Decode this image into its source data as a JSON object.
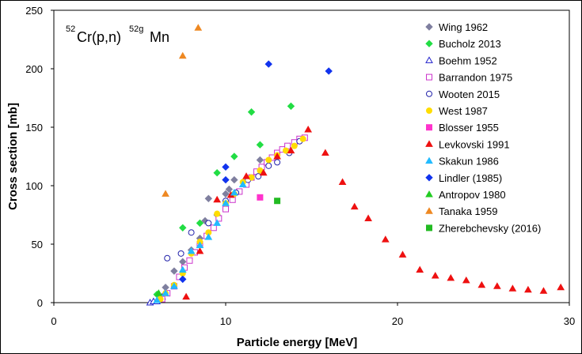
{
  "chart_data": {
    "type": "scatter",
    "title": {
      "mass_target": "52",
      "reaction": "Cr(p,n)",
      "mass_product": "52g",
      "product": "Mn"
    },
    "xlabel": "Particle  energy [MeV]",
    "ylabel": "Cross section [mb]",
    "xlim": [
      0,
      30
    ],
    "ylim": [
      0,
      250
    ],
    "xticks": [
      0,
      10,
      20,
      30
    ],
    "yticks": [
      0,
      50,
      100,
      150,
      200,
      250
    ],
    "legend_position": "right",
    "series": [
      {
        "name": "Wing 1962",
        "marker": "diamond",
        "color": "#7f7f9f",
        "filled": true,
        "points": [
          [
            6.5,
            13
          ],
          [
            7.0,
            27
          ],
          [
            7.5,
            35
          ],
          [
            8.0,
            45
          ],
          [
            8.5,
            55
          ],
          [
            8.8,
            70
          ],
          [
            9.0,
            89
          ],
          [
            9.5,
            75
          ],
          [
            10.0,
            93
          ],
          [
            10.2,
            97
          ],
          [
            10.5,
            105
          ],
          [
            12.0,
            122
          ]
        ]
      },
      {
        "name": "Bucholz 2013",
        "marker": "diamond",
        "color": "#22dd44",
        "filled": true,
        "points": [
          [
            6.0,
            7
          ],
          [
            7.5,
            64
          ],
          [
            8.5,
            68
          ],
          [
            9.5,
            111
          ],
          [
            10.5,
            125
          ],
          [
            11.5,
            163
          ],
          [
            12.0,
            135
          ],
          [
            13.8,
            168
          ]
        ]
      },
      {
        "name": "Boehm 1952",
        "marker": "triangle",
        "color": "#2222cc",
        "filled": false,
        "points": [
          [
            5.6,
            0
          ],
          [
            5.8,
            1
          ],
          [
            6.0,
            1
          ],
          [
            6.3,
            5
          ]
        ]
      },
      {
        "name": "Barrandon 1975",
        "marker": "square",
        "color": "#cc33cc",
        "filled": false,
        "points": [
          [
            6.3,
            3
          ],
          [
            6.6,
            8
          ],
          [
            7.0,
            14
          ],
          [
            7.3,
            22
          ],
          [
            7.6,
            30
          ],
          [
            7.9,
            36
          ],
          [
            8.2,
            43
          ],
          [
            8.5,
            50
          ],
          [
            8.9,
            57
          ],
          [
            9.3,
            64
          ],
          [
            9.6,
            72
          ],
          [
            10.0,
            80
          ],
          [
            10.4,
            88
          ],
          [
            10.8,
            95
          ],
          [
            11.2,
            101
          ],
          [
            11.5,
            107
          ],
          [
            11.8,
            112
          ],
          [
            12.1,
            116
          ],
          [
            12.4,
            120
          ],
          [
            12.7,
            124
          ],
          [
            13.0,
            128
          ],
          [
            13.3,
            131
          ],
          [
            13.6,
            134
          ],
          [
            14.0,
            137
          ],
          [
            14.3,
            140
          ],
          [
            14.6,
            141
          ]
        ]
      },
      {
        "name": "Wooten 2015",
        "marker": "circle",
        "color": "#2222aa",
        "filled": false,
        "points": [
          [
            6.6,
            38
          ],
          [
            7.4,
            42
          ],
          [
            8.0,
            60
          ],
          [
            9.0,
            68
          ],
          [
            10.0,
            87
          ],
          [
            10.6,
            94
          ],
          [
            11.3,
            105
          ],
          [
            11.9,
            108
          ],
          [
            12.5,
            117
          ],
          [
            13.0,
            120
          ],
          [
            13.7,
            128
          ],
          [
            14.3,
            138
          ]
        ]
      },
      {
        "name": "West 1987",
        "marker": "circle",
        "color": "#ffdd00",
        "filled": true,
        "points": [
          [
            6.2,
            3
          ],
          [
            6.5,
            8
          ],
          [
            7.0,
            15
          ],
          [
            7.5,
            25
          ],
          [
            8.0,
            42
          ],
          [
            8.5,
            52
          ],
          [
            9.0,
            60
          ],
          [
            9.5,
            76
          ],
          [
            10.0,
            85
          ],
          [
            10.5,
            93
          ],
          [
            11.0,
            103
          ],
          [
            11.5,
            107
          ],
          [
            12.0,
            113
          ],
          [
            12.5,
            122
          ],
          [
            13.0,
            126
          ],
          [
            13.5,
            130
          ],
          [
            14.0,
            134
          ],
          [
            14.5,
            140
          ]
        ]
      },
      {
        "name": "Blosser 1955",
        "marker": "square",
        "color": "#ff33cc",
        "filled": true,
        "points": [
          [
            12.0,
            90
          ]
        ]
      },
      {
        "name": "Levkovski 1991",
        "marker": "triangle",
        "color": "#ee1111",
        "filled": true,
        "points": [
          [
            7.7,
            5
          ],
          [
            8.5,
            44
          ],
          [
            9.5,
            88
          ],
          [
            10.3,
            92
          ],
          [
            11.2,
            108
          ],
          [
            12.2,
            111
          ],
          [
            13.0,
            125
          ],
          [
            13.8,
            130
          ],
          [
            14.8,
            148
          ],
          [
            15.8,
            128
          ],
          [
            16.8,
            103
          ],
          [
            17.5,
            82
          ],
          [
            18.3,
            72
          ],
          [
            19.3,
            54
          ],
          [
            20.3,
            41
          ],
          [
            21.3,
            28
          ],
          [
            22.2,
            23
          ],
          [
            23.1,
            21
          ],
          [
            24.0,
            19
          ],
          [
            24.9,
            15
          ],
          [
            25.8,
            14
          ],
          [
            26.7,
            12
          ],
          [
            27.6,
            11
          ],
          [
            28.5,
            10
          ],
          [
            29.5,
            13
          ]
        ]
      },
      {
        "name": "Skakun 1986",
        "marker": "triangle",
        "color": "#22bbff",
        "filled": true,
        "points": [
          [
            6.0,
            2
          ],
          [
            6.5,
            8
          ],
          [
            7.0,
            14
          ],
          [
            7.5,
            28
          ],
          [
            8.0,
            44
          ],
          [
            8.5,
            49
          ],
          [
            9.0,
            56
          ],
          [
            9.5,
            68
          ],
          [
            10.0,
            85
          ],
          [
            10.5,
            94
          ],
          [
            11.0,
            101
          ]
        ]
      },
      {
        "name": "Lindler (1985)",
        "marker": "diamond",
        "color": "#1133ee",
        "filled": true,
        "points": [
          [
            7.5,
            20
          ],
          [
            10.0,
            105
          ],
          [
            10.0,
            116
          ],
          [
            12.5,
            204
          ],
          [
            16.0,
            198
          ]
        ]
      },
      {
        "name": "Antropov 1980",
        "marker": "triangle",
        "color": "#22cc22",
        "filled": true,
        "points": [
          [
            6.1,
            8
          ]
        ]
      },
      {
        "name": "Tanaka 1959",
        "marker": "triangle",
        "color": "#ee8822",
        "filled": true,
        "points": [
          [
            6.5,
            93
          ],
          [
            7.5,
            211
          ],
          [
            8.4,
            235
          ]
        ]
      },
      {
        "name": "Zherebchevsky (2016)",
        "marker": "square",
        "color": "#22bb22",
        "filled": true,
        "points": [
          [
            13.0,
            87
          ]
        ]
      }
    ]
  }
}
